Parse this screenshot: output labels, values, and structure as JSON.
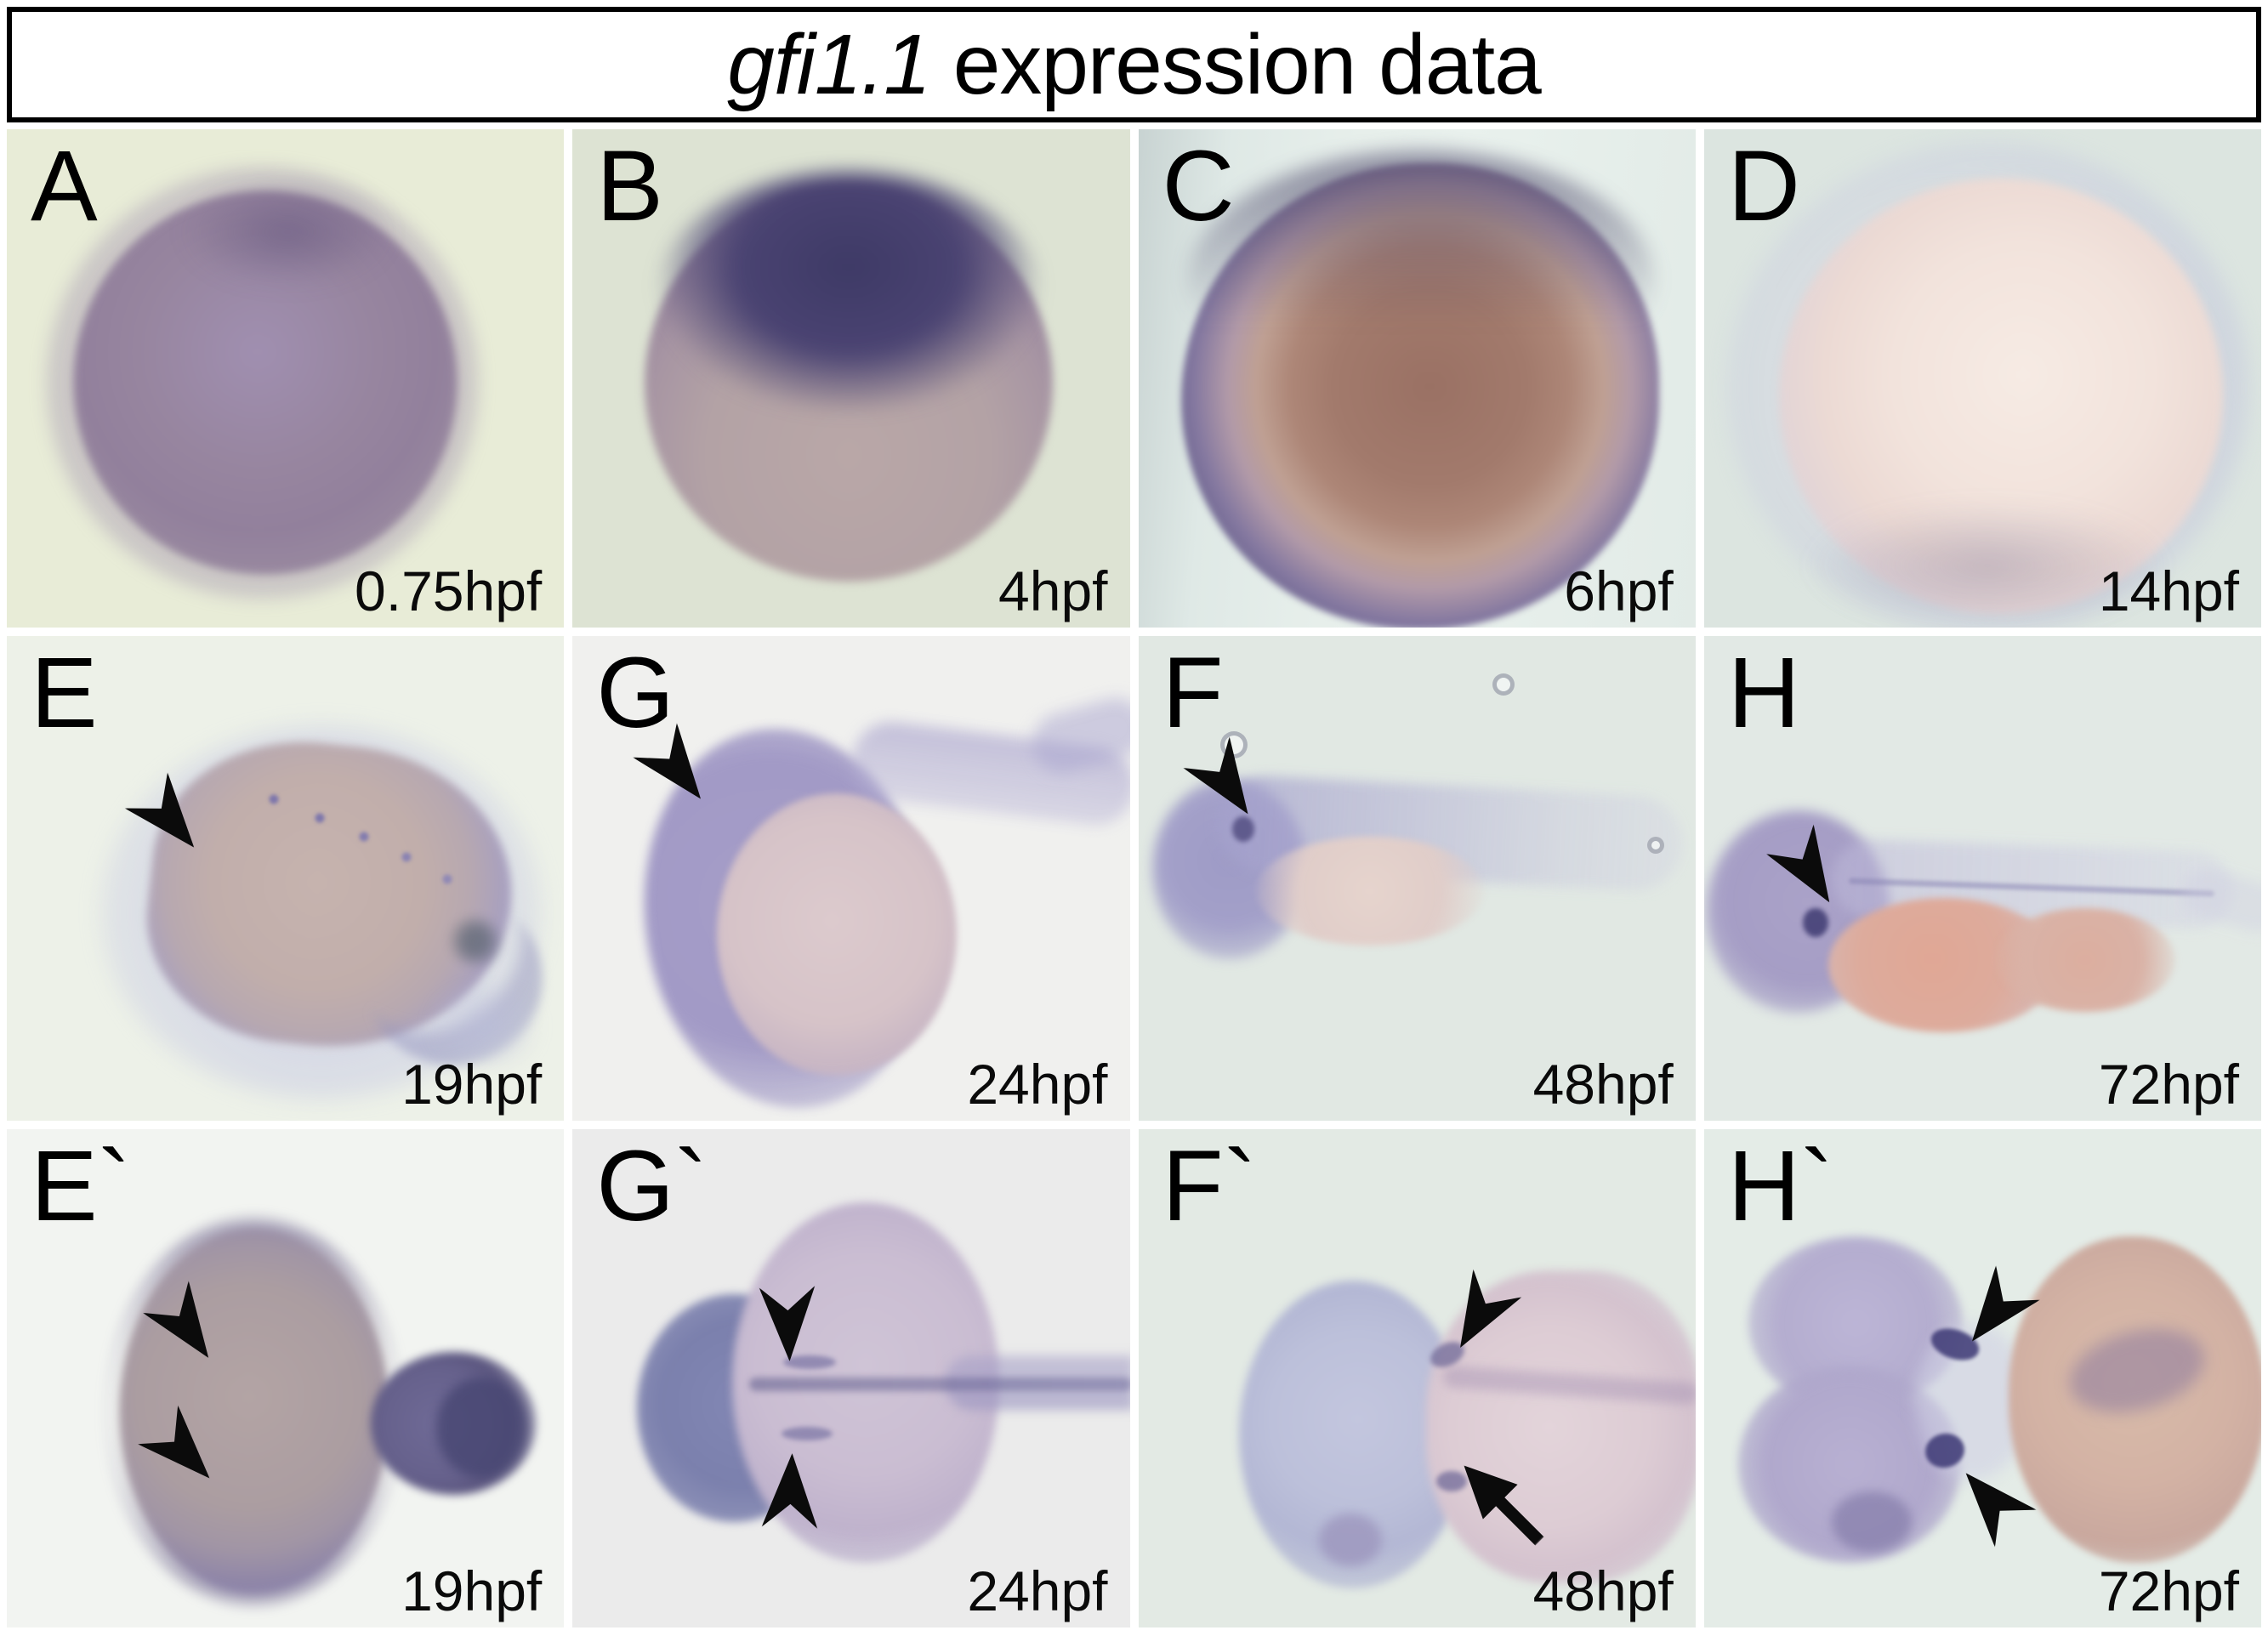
{
  "figure_title": {
    "gene": "gfi1.1",
    "rest": " expression data"
  },
  "panels": [
    {
      "label": "A",
      "timestamp": "0.75hpf"
    },
    {
      "label": "B",
      "timestamp": "4hpf"
    },
    {
      "label": "C",
      "timestamp": "6hpf"
    },
    {
      "label": "D",
      "timestamp": "14hpf"
    },
    {
      "label": "E",
      "timestamp": "19hpf"
    },
    {
      "label": "G",
      "timestamp": "24hpf"
    },
    {
      "label": "F",
      "timestamp": "48hpf"
    },
    {
      "label": "H",
      "timestamp": "72hpf"
    },
    {
      "label": "E`",
      "timestamp": "19hpf"
    },
    {
      "label": "G`",
      "timestamp": "24hpf"
    },
    {
      "label": "F`",
      "timestamp": "48hpf"
    },
    {
      "label": "H`",
      "timestamp": "72hpf"
    }
  ],
  "colors": {
    "page_background": "#ffffff",
    "title_border": "#000000",
    "text": "#000000",
    "arrowhead": "#0b0b0b",
    "panel_backgrounds": {
      "A": "#e8ecd7",
      "B": "#dde3d3",
      "C": "#e4ede9",
      "D": "#dce5e0",
      "E": "#edf1e8",
      "G": "#f0f0ee",
      "F": "#e1e8e3",
      "H": "#e2e9e5",
      "E`": "#f2f4f1",
      "G`": "#ebebeb",
      "F`": "#e3eae4",
      "H`": "#e4ece7"
    }
  }
}
